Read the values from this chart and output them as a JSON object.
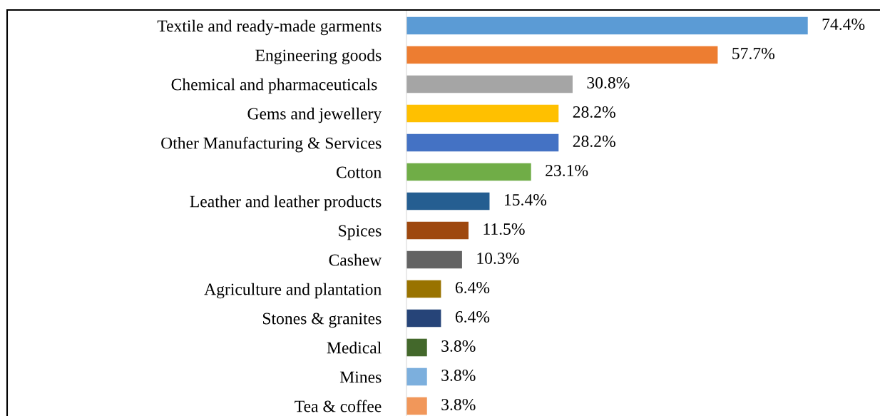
{
  "chart_data": {
    "type": "bar",
    "orientation": "horizontal",
    "categories": [
      "Textile and ready-made garments",
      "Engineering goods",
      "Chemical and pharmaceuticals ",
      "Gems and jewellery",
      "Other Manufacturing & Services",
      "Cotton",
      "Leather and leather products",
      "Spices",
      "Cashew",
      "Agriculture and plantation",
      "Stones & granites",
      "Medical",
      "Mines",
      "Tea & coffee"
    ],
    "values": [
      74.4,
      57.7,
      30.8,
      28.2,
      28.2,
      23.1,
      15.4,
      11.5,
      10.3,
      6.4,
      6.4,
      3.8,
      3.8,
      3.8
    ],
    "value_labels": [
      "74.4%",
      "57.7%",
      "30.8%",
      "28.2%",
      "28.2%",
      "23.1%",
      "15.4%",
      "11.5%",
      "10.3%",
      "6.4%",
      "6.4%",
      "3.8%",
      "3.8%",
      "3.8%"
    ],
    "colors": [
      "#5b9bd5",
      "#ed7d31",
      "#a5a5a5",
      "#ffc000",
      "#4472c4",
      "#70ad47",
      "#255e91",
      "#9e480e",
      "#636363",
      "#997300",
      "#264478",
      "#43682b",
      "#7cafdd",
      "#f1975a"
    ],
    "grid": false,
    "legend": false
  }
}
